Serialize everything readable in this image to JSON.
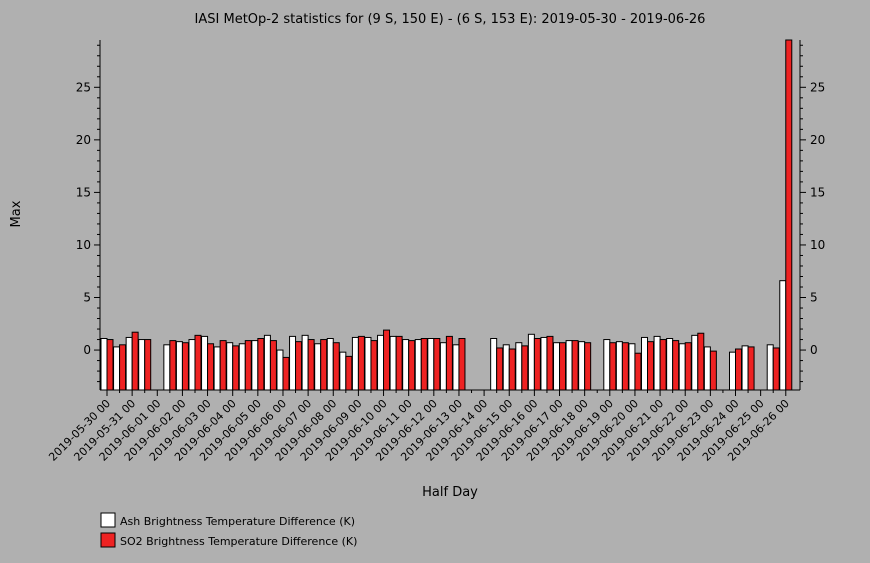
{
  "chart_data": {
    "type": "bar",
    "title": "IASI MetOp-2 statistics for (9 S, 150 E) - (6 S, 153 E): 2019-05-30 - 2019-06-26",
    "xlabel": "Half Day",
    "ylabel": "Max",
    "ylim": [
      -3.8,
      29.5
    ],
    "yticks": [
      0,
      5,
      10,
      15,
      20,
      25
    ],
    "x_tick_labels": [
      "2019-05-30 00",
      "2019-05-31 00",
      "2019-06-01 00",
      "2019-06-02 00",
      "2019-06-03 00",
      "2019-06-04 00",
      "2019-06-05 00",
      "2019-06-06 00",
      "2019-06-07 00",
      "2019-06-08 00",
      "2019-06-09 00",
      "2019-06-10 00",
      "2019-06-11 00",
      "2019-06-12 00",
      "2019-06-13 00",
      "2019-06-14 00",
      "2019-06-15 00",
      "2019-06-16 00",
      "2019-06-17 00",
      "2019-06-18 00",
      "2019-06-19 00",
      "2019-06-20 00",
      "2019-06-21 00",
      "2019-06-22 00",
      "2019-06-23 00",
      "2019-06-24 00",
      "2019-06-25 00",
      "2019-06-26 00"
    ],
    "x": [
      "2019-05-30 00",
      "2019-05-30 12",
      "2019-05-31 00",
      "2019-05-31 12",
      "2019-06-01 00",
      "2019-06-01 12",
      "2019-06-02 00",
      "2019-06-02 12",
      "2019-06-03 00",
      "2019-06-03 12",
      "2019-06-04 00",
      "2019-06-04 12",
      "2019-06-05 00",
      "2019-06-05 12",
      "2019-06-06 00",
      "2019-06-06 12",
      "2019-06-07 00",
      "2019-06-07 12",
      "2019-06-08 00",
      "2019-06-08 12",
      "2019-06-09 00",
      "2019-06-09 12",
      "2019-06-10 00",
      "2019-06-10 12",
      "2019-06-11 00",
      "2019-06-11 12",
      "2019-06-12 00",
      "2019-06-12 12",
      "2019-06-13 00",
      "2019-06-13 12",
      "2019-06-14 00",
      "2019-06-14 12",
      "2019-06-15 00",
      "2019-06-15 12",
      "2019-06-16 00",
      "2019-06-16 12",
      "2019-06-17 00",
      "2019-06-17 12",
      "2019-06-18 00",
      "2019-06-18 12",
      "2019-06-19 00",
      "2019-06-19 12",
      "2019-06-20 00",
      "2019-06-20 12",
      "2019-06-21 00",
      "2019-06-21 12",
      "2019-06-22 00",
      "2019-06-22 12",
      "2019-06-23 00",
      "2019-06-23 12",
      "2019-06-24 00",
      "2019-06-24 12",
      "2019-06-25 00",
      "2019-06-25 12",
      "2019-06-26 00"
    ],
    "series": [
      {
        "name": "Ash Brightness Temperature Difference (K)",
        "color": "#ffffff",
        "values": [
          1.1,
          0.3,
          1.2,
          1.0,
          null,
          0.5,
          0.8,
          1.0,
          1.3,
          0.3,
          0.7,
          0.6,
          0.9,
          1.4,
          0.0,
          1.3,
          1.4,
          0.6,
          1.1,
          -0.2,
          1.2,
          1.2,
          1.4,
          1.3,
          1.0,
          1.0,
          1.1,
          0.7,
          0.5,
          null,
          null,
          1.1,
          0.5,
          0.7,
          1.5,
          1.2,
          0.7,
          0.9,
          0.8,
          null,
          1.0,
          0.8,
          0.6,
          1.2,
          1.3,
          1.1,
          0.6,
          1.4,
          0.3,
          null,
          -0.2,
          0.4,
          null,
          0.5,
          6.6
        ]
      },
      {
        "name": "SO2 Brightness Temperature Difference (K)",
        "color": "#ee2222",
        "values": [
          1.0,
          0.5,
          1.7,
          1.0,
          null,
          0.9,
          0.7,
          1.4,
          0.6,
          0.9,
          0.4,
          0.9,
          1.1,
          0.9,
          -0.7,
          0.8,
          1.0,
          1.0,
          0.7,
          -0.6,
          1.3,
          0.9,
          1.9,
          1.3,
          0.9,
          1.1,
          1.1,
          1.3,
          1.1,
          null,
          null,
          0.2,
          0.1,
          0.4,
          1.1,
          1.3,
          0.7,
          0.9,
          0.7,
          null,
          0.7,
          0.7,
          -0.3,
          0.8,
          1.0,
          0.9,
          0.7,
          1.6,
          -0.1,
          null,
          0.1,
          0.3,
          null,
          0.2,
          29.5
        ]
      }
    ],
    "legend_position": "bottom-left"
  }
}
